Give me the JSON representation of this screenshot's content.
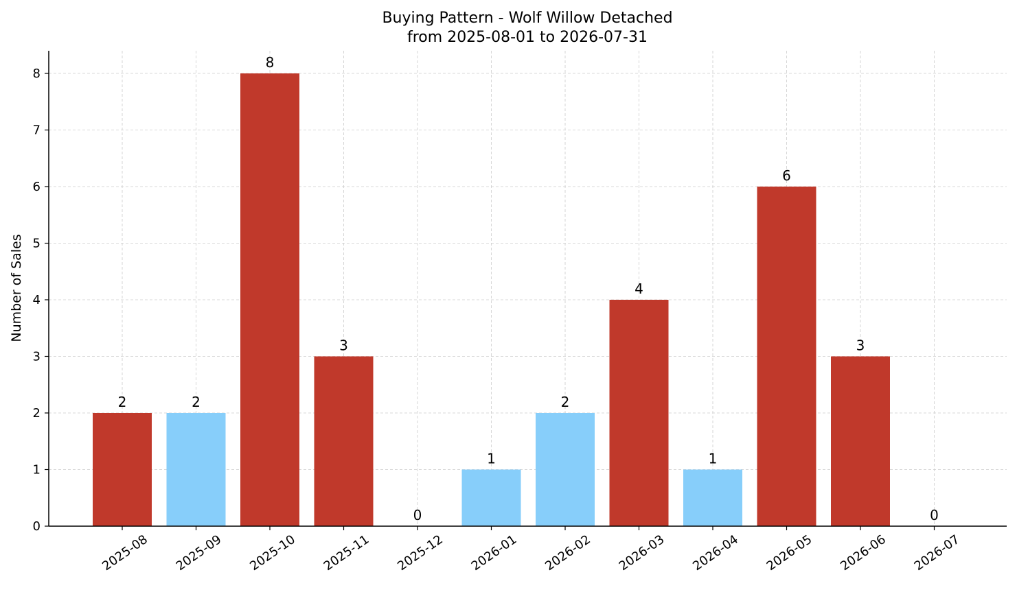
{
  "chart_data": {
    "type": "bar",
    "title": "Buying Pattern - Wolf Willow Detached",
    "subtitle": "from 2025-08-01 to 2026-07-31",
    "xlabel": "",
    "ylabel": "Number of Sales",
    "categories": [
      "2025-08",
      "2025-09",
      "2025-10",
      "2025-11",
      "2025-12",
      "2026-01",
      "2026-02",
      "2026-03",
      "2026-04",
      "2026-05",
      "2026-06",
      "2026-07"
    ],
    "values": [
      2,
      2,
      8,
      3,
      0,
      1,
      2,
      4,
      1,
      6,
      3,
      0
    ],
    "bar_colors": [
      "#c0392b",
      "#87cefa",
      "#c0392b",
      "#c0392b",
      "#c0392b",
      "#87cefa",
      "#87cefa",
      "#c0392b",
      "#87cefa",
      "#c0392b",
      "#c0392b",
      "#c0392b"
    ],
    "ylim": [
      0,
      8.4
    ],
    "yticks": [
      "0",
      "1",
      "2",
      "3",
      "4",
      "5",
      "6",
      "7",
      "8"
    ],
    "grid": true,
    "legend": "none"
  }
}
